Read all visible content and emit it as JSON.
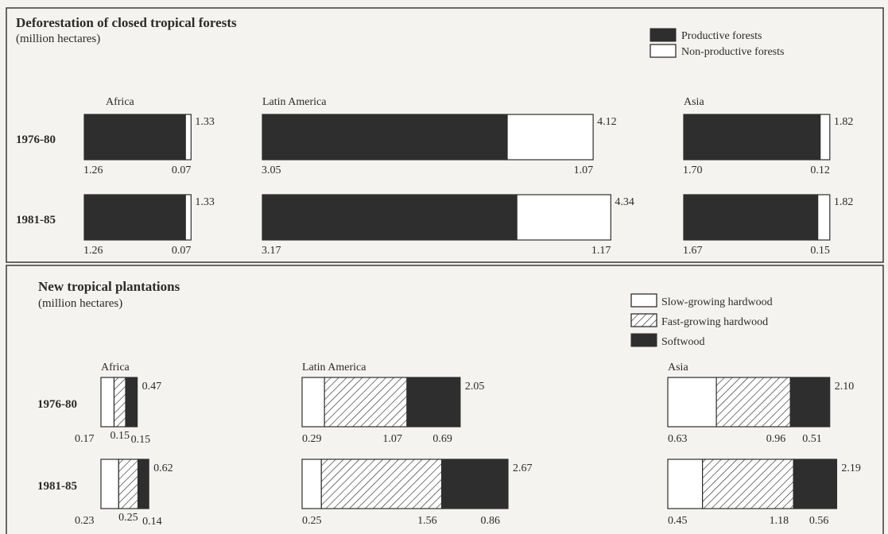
{
  "colors": {
    "background": "#f4f3ef",
    "dark": "#2e2e2e",
    "frame": "#3a3a3a",
    "light": "#ffffff",
    "hatch": "#2e2e2e"
  },
  "chart_data": [
    {
      "type": "bar",
      "stacked": true,
      "orientation": "horizontal",
      "title": "Deforestation of closed tropical forests",
      "subtitle": "(million hectares)",
      "legend": [
        {
          "label": "Productive forests",
          "style": "solid"
        },
        {
          "label": "Non-productive forests",
          "style": "white"
        }
      ],
      "legend_position": "top-right",
      "regions": [
        {
          "name": "Africa",
          "rows": [
            {
              "year": "1976-80",
              "total": "1.33",
              "values": [
                1.26,
                0.07
              ],
              "labels": [
                "1.26",
                "0.07"
              ]
            },
            {
              "year": "1981-85",
              "total": "1.33",
              "values": [
                1.26,
                0.07
              ],
              "labels": [
                "1.26",
                "0.07"
              ]
            }
          ]
        },
        {
          "name": "Latin America",
          "rows": [
            {
              "year": "1976-80",
              "total": "4.12",
              "values": [
                3.05,
                1.07
              ],
              "labels": [
                "3.05",
                "1.07"
              ]
            },
            {
              "year": "1981-85",
              "total": "4.34",
              "values": [
                3.17,
                1.17
              ],
              "labels": [
                "3.17",
                "1.17"
              ]
            }
          ]
        },
        {
          "name": "Asia",
          "rows": [
            {
              "year": "1976-80",
              "total": "1.82",
              "values": [
                1.7,
                0.12
              ],
              "labels": [
                "1.70",
                "0.12"
              ]
            },
            {
              "year": "1981-85",
              "total": "1.82",
              "values": [
                1.67,
                0.15
              ],
              "labels": [
                "1.67",
                "0.15"
              ]
            }
          ]
        }
      ]
    },
    {
      "type": "bar",
      "stacked": true,
      "orientation": "horizontal",
      "title": "New tropical plantations",
      "subtitle": "(million hectares)",
      "legend": [
        {
          "label": "Slow-growing hardwood",
          "style": "white"
        },
        {
          "label": "Fast-growing hardwood",
          "style": "hatched"
        },
        {
          "label": "Softwood",
          "style": "solid"
        }
      ],
      "legend_position": "top-right",
      "regions": [
        {
          "name": "Africa",
          "rows": [
            {
              "year": "1976-80",
              "total": "0.47",
              "values": [
                0.17,
                0.15,
                0.15
              ],
              "labels": [
                "0.17",
                "0.15",
                "0.15"
              ]
            },
            {
              "year": "1981-85",
              "total": "0.62",
              "values": [
                0.23,
                0.25,
                0.14
              ],
              "labels": [
                "0.23",
                "0.25",
                "0.14"
              ]
            }
          ]
        },
        {
          "name": "Latin America",
          "rows": [
            {
              "year": "1976-80",
              "total": "2.05",
              "values": [
                0.29,
                1.07,
                0.69
              ],
              "labels": [
                "0.29",
                "1.07",
                "0.69"
              ]
            },
            {
              "year": "1981-85",
              "total": "2.67",
              "values": [
                0.25,
                1.56,
                0.86
              ],
              "labels": [
                "0.25",
                "1.56",
                "0.86"
              ]
            }
          ]
        },
        {
          "name": "Asia",
          "rows": [
            {
              "year": "1976-80",
              "total": "2.10",
              "values": [
                0.63,
                0.96,
                0.51
              ],
              "labels": [
                "0.63",
                "0.96",
                "0.51"
              ]
            },
            {
              "year": "1981-85",
              "total": "2.19",
              "values": [
                0.45,
                1.18,
                0.56
              ],
              "labels": [
                "0.45",
                "1.18",
                "0.56"
              ]
            }
          ]
        }
      ]
    }
  ]
}
